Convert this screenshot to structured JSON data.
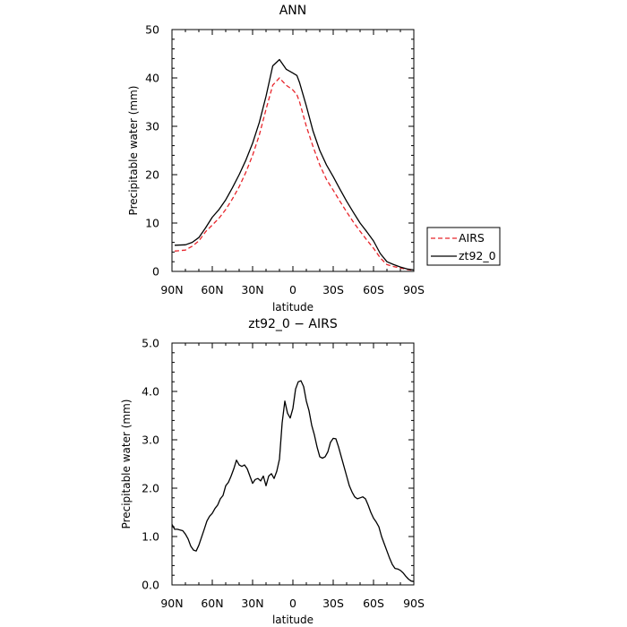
{
  "chart_data": [
    {
      "type": "line",
      "title": "ANN",
      "xlabel": "latitude",
      "ylabel": "Precipitable water  (mm)",
      "x_ticks": [
        90,
        60,
        30,
        0,
        -30,
        -60,
        -90
      ],
      "x_tick_labels": [
        "90N",
        "60N",
        "30N",
        "0",
        "30S",
        "60S",
        "90S"
      ],
      "xlim": [
        90,
        -90
      ],
      "ylim": [
        0,
        50
      ],
      "y_ticks": [
        0,
        10,
        20,
        30,
        40,
        50
      ],
      "y_tick_labels": [
        "0",
        "10",
        "20",
        "30",
        "40",
        "50"
      ],
      "grid": false,
      "legend": "right",
      "series": [
        {
          "name": "AIRS",
          "color": "#e8252b",
          "dash": "dashed",
          "x": [
            88,
            80,
            75,
            70,
            65,
            60,
            55,
            50,
            45,
            40,
            35,
            30,
            25,
            20,
            15,
            10,
            5,
            0,
            -3,
            -5,
            -10,
            -15,
            -20,
            -25,
            -30,
            -35,
            -40,
            -45,
            -50,
            -55,
            -60,
            -65,
            -70,
            -75,
            -80,
            -85,
            -90
          ],
          "y": [
            4.2,
            4.4,
            5.2,
            6.3,
            8.2,
            9.6,
            11.0,
            12.8,
            15.0,
            17.5,
            20.5,
            24.0,
            28.2,
            33.5,
            38.5,
            40.0,
            38.5,
            37.5,
            36.5,
            35.0,
            30.0,
            25.8,
            22.0,
            19.0,
            16.8,
            14.5,
            12.3,
            10.2,
            8.3,
            6.5,
            4.8,
            2.8,
            1.4,
            1.0,
            0.7,
            0.4,
            0.2
          ]
        },
        {
          "name": "zt92_0",
          "color": "#000000",
          "dash": "solid",
          "x": [
            88,
            80,
            75,
            70,
            65,
            60,
            55,
            50,
            45,
            40,
            35,
            30,
            25,
            20,
            15,
            10,
            5,
            0,
            -3,
            -5,
            -10,
            -15,
            -20,
            -25,
            -30,
            -35,
            -40,
            -45,
            -50,
            -55,
            -60,
            -65,
            -70,
            -75,
            -80,
            -85,
            -90
          ],
          "y": [
            5.4,
            5.5,
            6.0,
            7.0,
            9.0,
            11.2,
            12.8,
            14.8,
            17.3,
            20.0,
            23.0,
            26.5,
            30.8,
            36.2,
            42.5,
            43.8,
            41.8,
            41.0,
            40.5,
            39.0,
            34.2,
            29.0,
            25.0,
            22.0,
            19.6,
            17.0,
            14.5,
            12.2,
            10.0,
            8.2,
            6.3,
            3.7,
            2.0,
            1.4,
            0.9,
            0.5,
            0.3
          ]
        }
      ]
    },
    {
      "type": "line",
      "title": "zt92_0 − AIRS",
      "xlabel": "latitude",
      "ylabel": "Precipitable water  (mm)",
      "x_ticks": [
        90,
        60,
        30,
        0,
        -30,
        -60,
        -90
      ],
      "x_tick_labels": [
        "90N",
        "60N",
        "30N",
        "0",
        "30S",
        "60S",
        "90S"
      ],
      "xlim": [
        90,
        -90
      ],
      "ylim": [
        0,
        5
      ],
      "y_ticks": [
        0,
        1,
        2,
        3,
        4,
        5
      ],
      "y_tick_labels": [
        "0.0",
        "1.0",
        "2.0",
        "3.0",
        "4.0",
        "5.0"
      ],
      "grid": false,
      "legend": "none",
      "series": [
        {
          "name": "",
          "color": "#000000",
          "dash": "solid",
          "x": [
            90,
            88,
            86,
            82,
            80,
            78,
            76,
            74,
            72,
            70,
            66,
            64,
            62,
            60,
            58,
            56,
            54,
            52,
            50,
            48,
            46,
            44,
            42,
            40,
            38,
            36,
            34,
            32,
            30,
            28,
            26,
            24,
            22,
            20,
            18,
            16,
            14,
            12,
            10,
            8,
            6,
            4,
            2,
            0,
            -2,
            -4,
            -6,
            -8,
            -10,
            -12,
            -14,
            -16,
            -18,
            -20,
            -22,
            -24,
            -26,
            -28,
            -30,
            -32,
            -34,
            -36,
            -38,
            -40,
            -42,
            -44,
            -46,
            -48,
            -50,
            -52,
            -54,
            -56,
            -58,
            -60,
            -62,
            -64,
            -66,
            -68,
            -70,
            -72,
            -74,
            -76,
            -78,
            -80,
            -82,
            -84,
            -86,
            -88,
            -90
          ],
          "y": [
            1.25,
            1.15,
            1.15,
            1.12,
            1.05,
            0.95,
            0.8,
            0.72,
            0.7,
            0.82,
            1.15,
            1.32,
            1.42,
            1.48,
            1.58,
            1.65,
            1.78,
            1.85,
            2.05,
            2.12,
            2.25,
            2.4,
            2.58,
            2.48,
            2.45,
            2.48,
            2.4,
            2.25,
            2.1,
            2.18,
            2.2,
            2.15,
            2.25,
            2.05,
            2.25,
            2.3,
            2.2,
            2.35,
            2.6,
            3.35,
            3.8,
            3.55,
            3.45,
            3.65,
            4.05,
            4.2,
            4.22,
            4.1,
            3.8,
            3.6,
            3.3,
            3.1,
            2.85,
            2.65,
            2.62,
            2.65,
            2.75,
            2.95,
            3.03,
            3.02,
            2.85,
            2.65,
            2.45,
            2.25,
            2.05,
            1.92,
            1.82,
            1.78,
            1.8,
            1.82,
            1.78,
            1.65,
            1.5,
            1.38,
            1.3,
            1.2,
            1.0,
            0.85,
            0.7,
            0.55,
            0.42,
            0.34,
            0.33,
            0.3,
            0.25,
            0.18,
            0.12,
            0.08,
            0.07
          ]
        }
      ]
    }
  ]
}
